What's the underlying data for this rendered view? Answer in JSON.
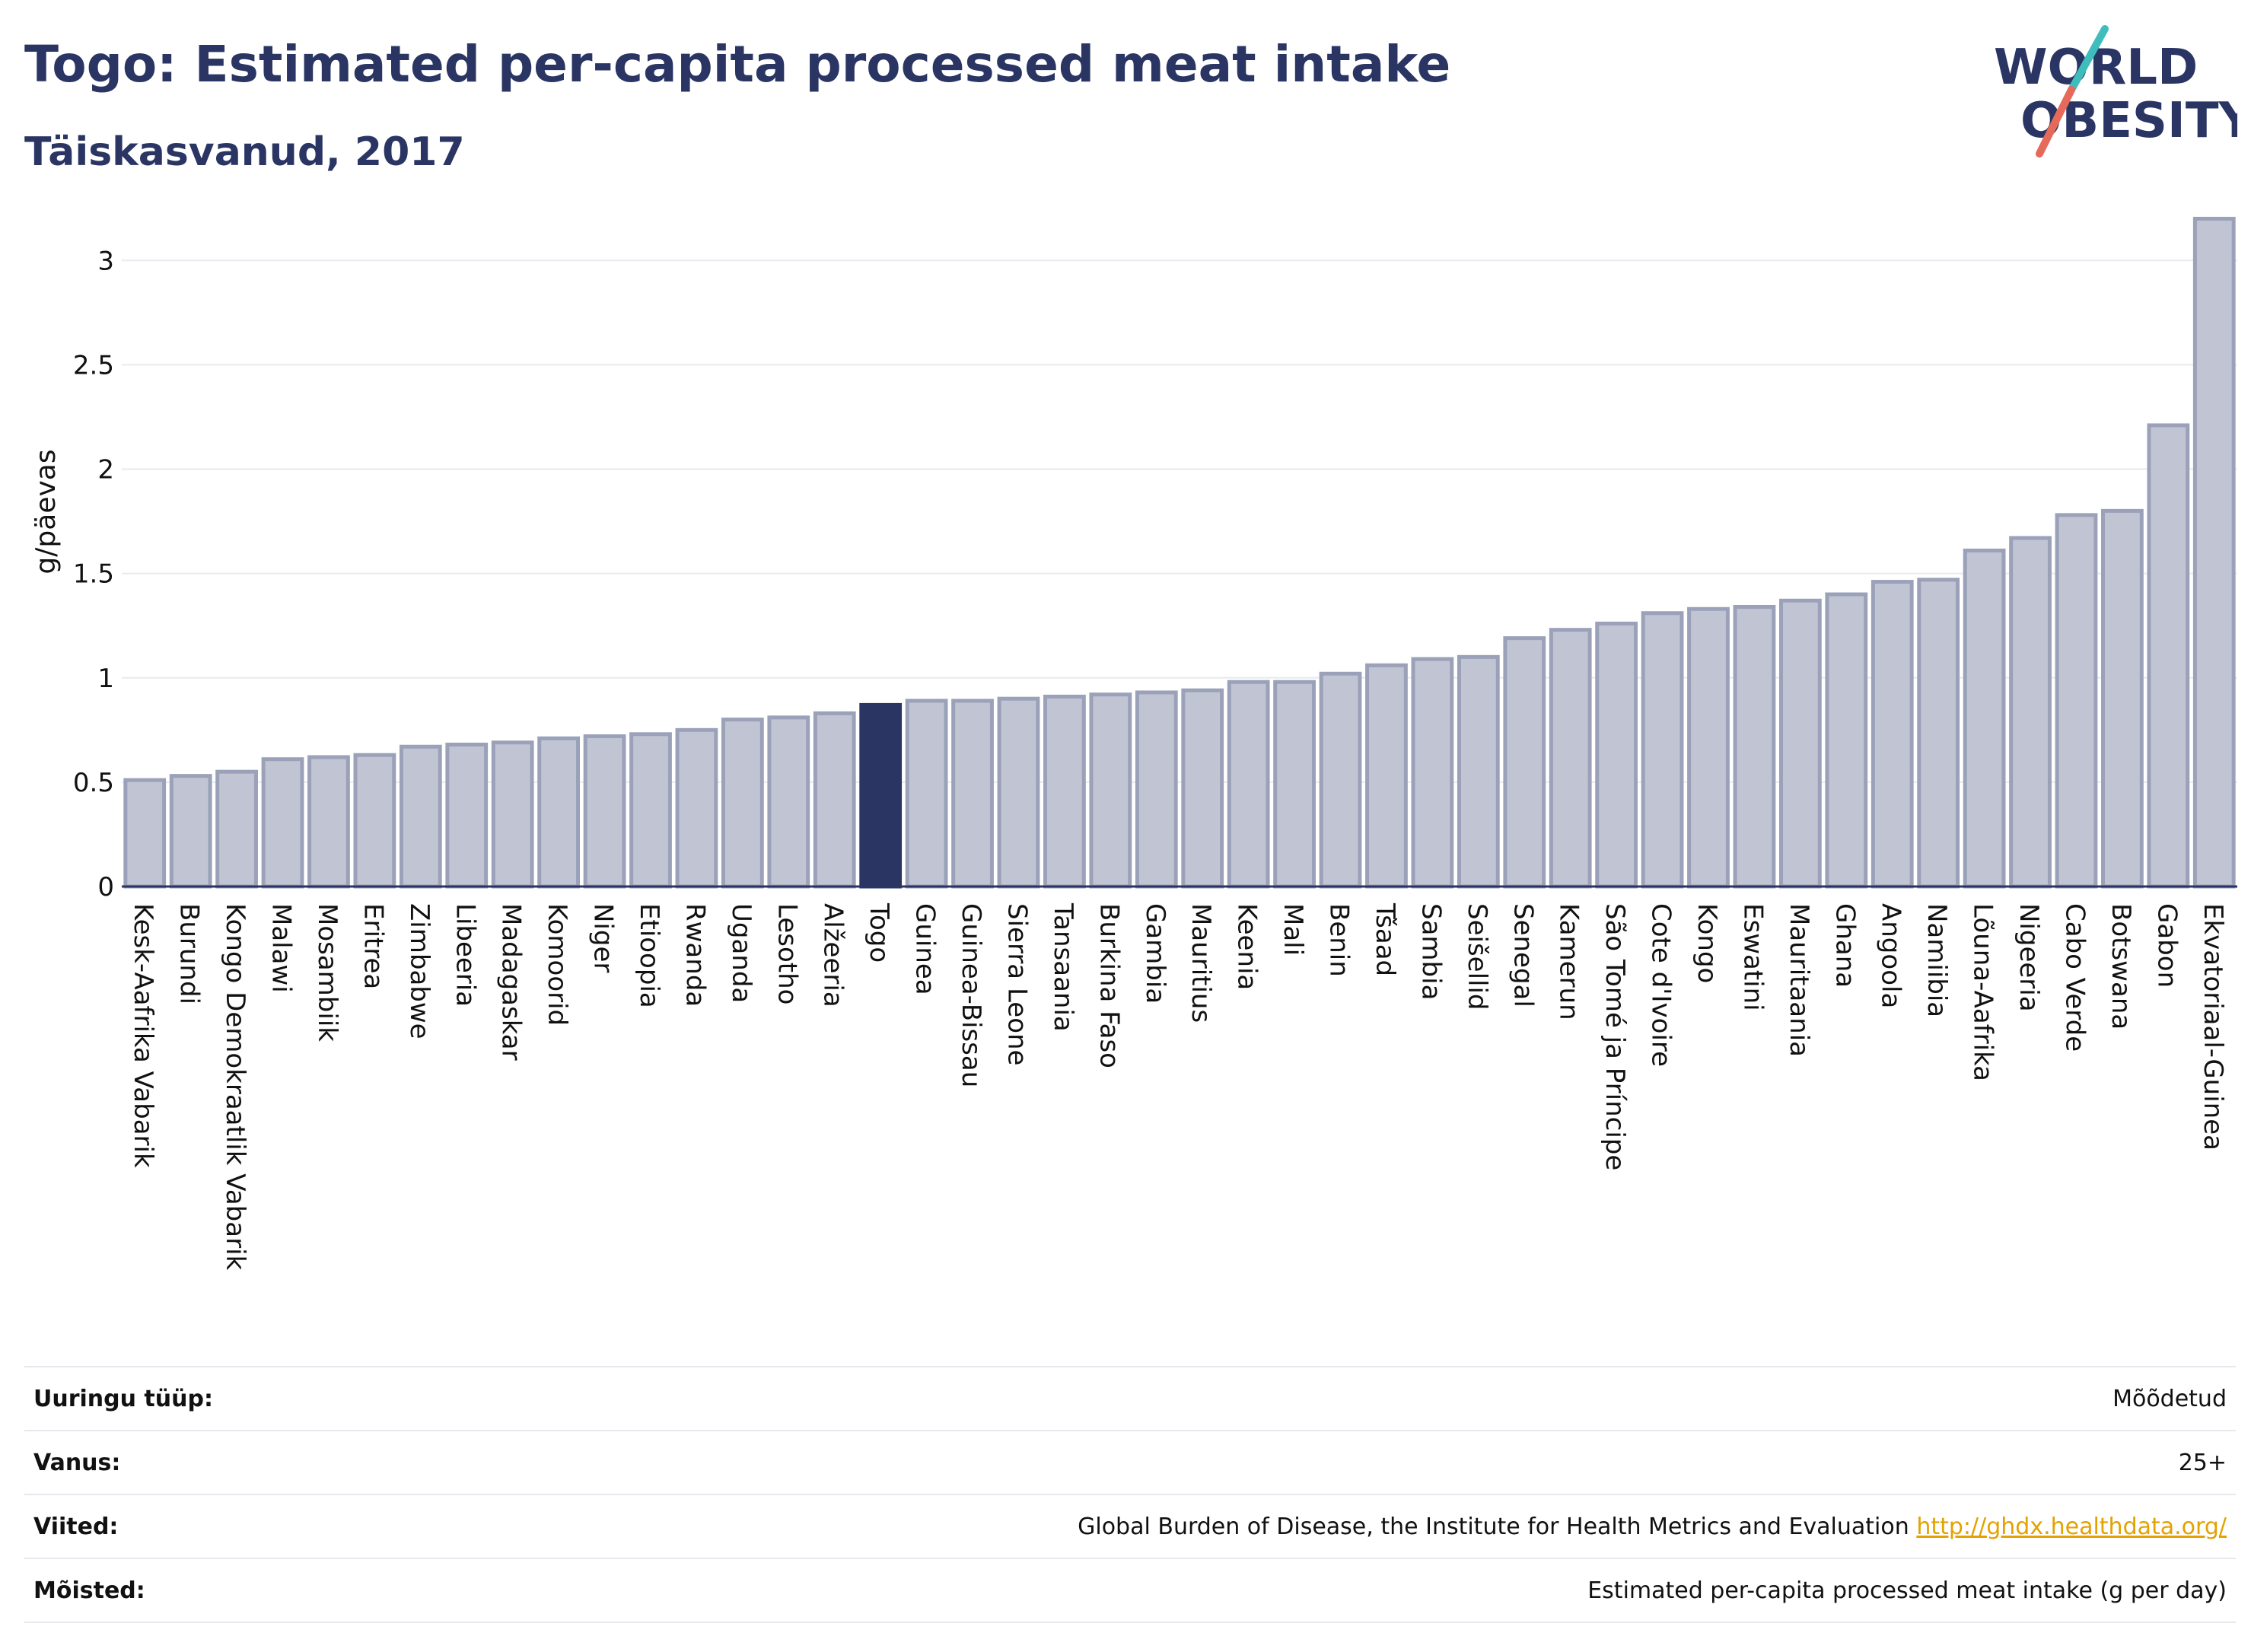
{
  "header": {
    "title": "Togo: Estimated per-capita processed meat intake",
    "subtitle": "Täiskasvanud, 2017"
  },
  "logo": {
    "line1": "WORLD",
    "line2": "OBESITY"
  },
  "chart_data": {
    "type": "bar",
    "ylabel": "g/päevas",
    "ylim": [
      0,
      3.3
    ],
    "yticks": [
      0,
      0.5,
      1,
      1.5,
      2,
      2.5,
      3
    ],
    "grid": true,
    "highlight": "Togo",
    "colors": {
      "bar": "#c1c5d3",
      "bar_edge": "#9aa1b8",
      "highlight": "#2a3563"
    },
    "categories": [
      "Kesk-Aafrika Vabarik",
      "Burundi",
      "Kongo Demokraatlik Vabarik",
      "Malawi",
      "Mosambiik",
      "Eritrea",
      "Zimbabwe",
      "Libeeria",
      "Madagaskar",
      "Komoorid",
      "Niger",
      "Etioopia",
      "Rwanda",
      "Uganda",
      "Lesotho",
      "Alžeeria",
      "Togo",
      "Guinea",
      "Guinea-Bissau",
      "Sierra Leone",
      "Tansaania",
      "Burkina Faso",
      "Gambia",
      "Mauritius",
      "Keenia",
      "Mali",
      "Benin",
      "Tšaad",
      "Sambia",
      "Seišellid",
      "Senegal",
      "Kamerun",
      "São Tomé ja Príncipe",
      "Cote d'Ivoire",
      "Kongo",
      "Eswatini",
      "Mauritaania",
      "Ghana",
      "Angoola",
      "Namiibia",
      "Lõuna-Aafrika",
      "Nigeeria",
      "Cabo Verde",
      "Botswana",
      "Gabon",
      "Ekvatoriaal-Guinea"
    ],
    "values": [
      0.51,
      0.53,
      0.55,
      0.61,
      0.62,
      0.63,
      0.67,
      0.68,
      0.69,
      0.71,
      0.72,
      0.73,
      0.75,
      0.8,
      0.81,
      0.83,
      0.87,
      0.89,
      0.89,
      0.9,
      0.91,
      0.92,
      0.93,
      0.94,
      0.98,
      0.98,
      1.02,
      1.06,
      1.09,
      1.1,
      1.19,
      1.23,
      1.26,
      1.31,
      1.33,
      1.34,
      1.37,
      1.4,
      1.46,
      1.47,
      1.61,
      1.67,
      1.78,
      1.8,
      2.21,
      3.2
    ]
  },
  "meta": [
    {
      "label": "Uuringu tüüp:",
      "value": "Mõõdetud",
      "link": ""
    },
    {
      "label": "Vanus:",
      "value": "25+",
      "link": ""
    },
    {
      "label": "Viited:",
      "value": "Global Burden of Disease, the Institute for Health Metrics and Evaluation",
      "link": "http://ghdx.healthdata.org/"
    },
    {
      "label": "Mõisted:",
      "value": "Estimated per-capita processed meat intake (g per day)",
      "link": ""
    }
  ]
}
